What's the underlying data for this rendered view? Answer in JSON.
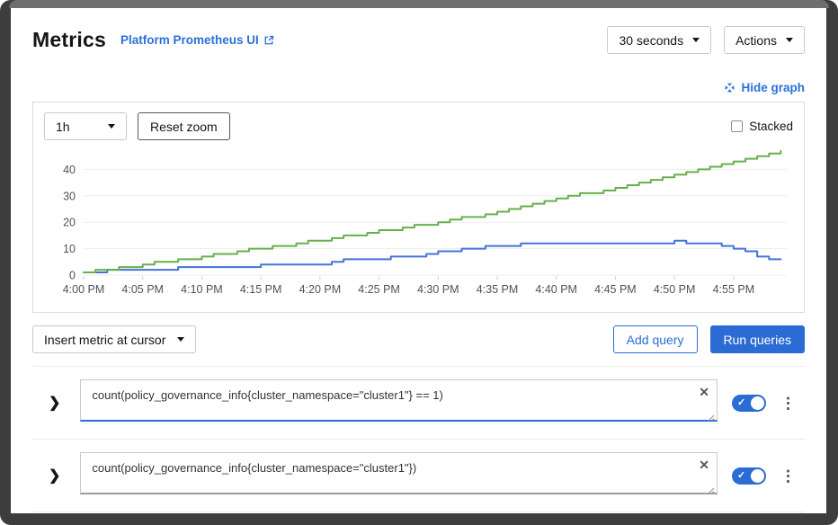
{
  "header": {
    "title": "Metrics",
    "prometheus_link_label": "Platform Prometheus UI",
    "refresh_interval": "30 seconds",
    "actions_label": "Actions"
  },
  "graph_controls": {
    "hide_graph_label": "Hide graph",
    "timespan": "1h",
    "reset_zoom_label": "Reset zoom",
    "stacked_label": "Stacked"
  },
  "chart_data": {
    "type": "line",
    "title": "",
    "xlabel": "",
    "ylabel": "",
    "x_start": "4:00 PM",
    "x_step_minutes": 1,
    "x_tick_labels": [
      "4:00 PM",
      "4:05 PM",
      "4:10 PM",
      "4:15 PM",
      "4:20 PM",
      "4:25 PM",
      "4:30 PM",
      "4:35 PM",
      "4:40 PM",
      "4:45 PM",
      "4:50 PM",
      "4:55 PM"
    ],
    "y_ticks": [
      0,
      10,
      20,
      30,
      40
    ],
    "ylim": [
      0,
      50
    ],
    "grid": true,
    "legend": false,
    "series": [
      {
        "name": "count(policy_governance_info{cluster_namespace=\"cluster1\"} == 1)",
        "color": "#4473d9",
        "values": [
          1,
          1,
          2,
          2,
          2,
          2,
          2,
          2,
          3,
          3,
          3,
          3,
          3,
          3,
          3,
          4,
          4,
          4,
          4,
          4,
          4,
          5,
          6,
          6,
          6,
          6,
          7,
          7,
          7,
          8,
          9,
          9,
          10,
          10,
          11,
          11,
          11,
          12,
          12,
          12,
          12,
          12,
          12,
          12,
          12,
          12,
          12,
          12,
          12,
          12,
          13,
          12,
          12,
          12,
          11,
          10,
          9,
          7,
          6,
          6
        ]
      },
      {
        "name": "count(policy_governance_info{cluster_namespace=\"cluster1\"})",
        "color": "#66b04c",
        "values": [
          1,
          2,
          2,
          3,
          3,
          4,
          5,
          5,
          6,
          6,
          7,
          8,
          8,
          9,
          10,
          10,
          11,
          11,
          12,
          13,
          13,
          14,
          15,
          15,
          16,
          17,
          17,
          18,
          19,
          19,
          20,
          21,
          22,
          22,
          23,
          24,
          25,
          26,
          27,
          28,
          29,
          30,
          31,
          31,
          32,
          33,
          34,
          35,
          36,
          37,
          38,
          39,
          40,
          41,
          42,
          43,
          44,
          45,
          46,
          47
        ]
      }
    ]
  },
  "query_toolbar": {
    "insert_metric_label": "Insert metric at cursor",
    "add_query_label": "Add query",
    "run_queries_label": "Run queries"
  },
  "queries": [
    {
      "expression": "count(policy_governance_info{cluster_namespace=\"cluster1\"} == 1)",
      "enabled": true
    },
    {
      "expression": "count(policy_governance_info{cluster_namespace=\"cluster1\"})",
      "enabled": true
    }
  ],
  "icons": {
    "clear": "✕",
    "kebab": "⋮",
    "expand_chevron": "❯",
    "toggle_check": "✓"
  },
  "colors": {
    "primary_blue": "#2b6cd4",
    "link_blue": "#2b71d8",
    "line_blue": "#4473d9",
    "line_green": "#66b04c",
    "grid_line": "#ededed",
    "axis_text": "#4f5255",
    "card_border": "#dcdcdc"
  }
}
